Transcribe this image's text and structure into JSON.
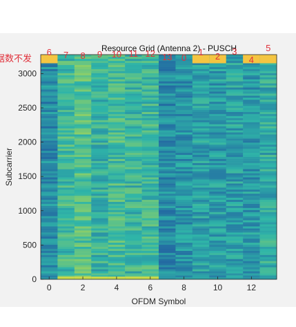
{
  "chart_data": {
    "type": "heatmap",
    "title": "Resource Grid (Antenna 2) - PUSCH",
    "xlabel": "OFDM Symbol",
    "ylabel": "Subcarrier",
    "xlim": [
      -0.5,
      13.5
    ],
    "ylim": [
      0,
      3276
    ],
    "xticks": [
      0,
      2,
      4,
      6,
      8,
      10,
      12
    ],
    "yticks": [
      0,
      500,
      1000,
      1500,
      2000,
      2500,
      3000
    ],
    "columns": [
      0,
      1,
      2,
      3,
      4,
      5,
      6,
      7,
      8,
      9,
      10,
      11,
      12,
      13
    ],
    "column_intensity": [
      0.3,
      0.55,
      0.62,
      0.5,
      0.58,
      0.52,
      0.55,
      0.3,
      0.34,
      0.4,
      0.38,
      0.4,
      0.36,
      0.46
    ],
    "top_band": {
      "from_subcarrier": 3150,
      "to_subcarrier": 3276,
      "columns": [
        0,
        9,
        10,
        12,
        13
      ],
      "color": "#f4c542"
    },
    "bottom_band": {
      "to_subcarrier": 40,
      "columns": [
        1,
        2,
        3,
        4,
        5,
        6
      ],
      "color": "#c8d94a"
    },
    "colors": {
      "low": "#1f4fa0",
      "mid": "#2fb5a8",
      "high": "#cfe13a"
    },
    "annotations": [
      {
        "text": "6",
        "symbol": 0
      },
      {
        "text": "7",
        "symbol": 1
      },
      {
        "text": "8",
        "symbol": 2
      },
      {
        "text": "9",
        "symbol": 3
      },
      {
        "text": "10",
        "symbol": 4
      },
      {
        "text": "11",
        "symbol": 5
      },
      {
        "text": "12",
        "symbol": 6
      },
      {
        "text": "13",
        "symbol": 7
      },
      {
        "text": "0",
        "symbol": 8
      },
      {
        "text": "1",
        "symbol": 9
      },
      {
        "text": "2",
        "symbol": 10
      },
      {
        "text": "3",
        "symbol": 11
      },
      {
        "text": "4",
        "symbol": 12
      },
      {
        "text": "5",
        "symbol": 13
      }
    ],
    "side_note": "据数不发",
    "annotation_color": "#e0303a",
    "grid": false
  }
}
